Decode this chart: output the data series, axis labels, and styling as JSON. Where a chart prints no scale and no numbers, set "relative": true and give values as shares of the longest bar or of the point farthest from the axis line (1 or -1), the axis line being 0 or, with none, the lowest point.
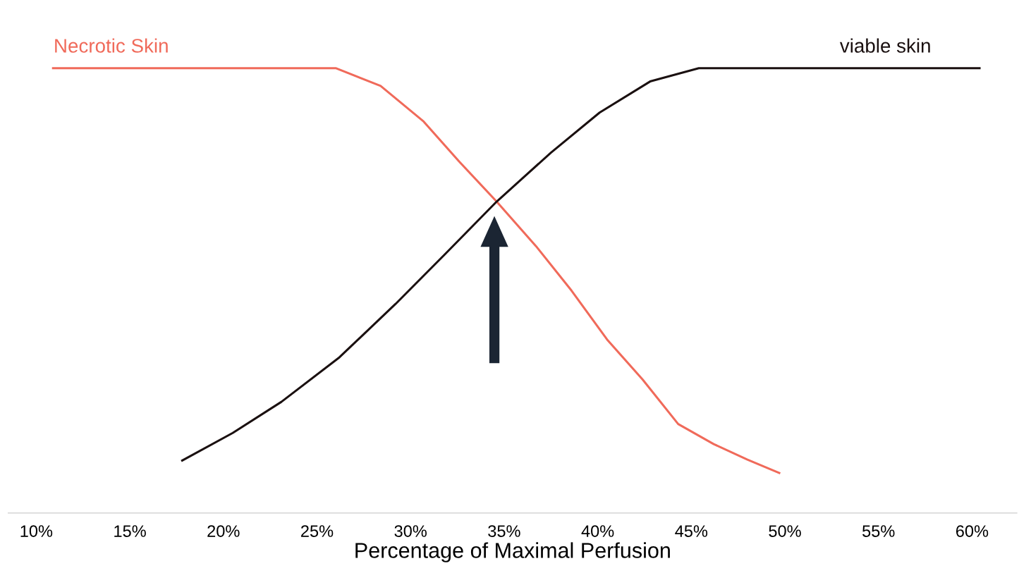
{
  "chart_data": {
    "type": "line",
    "xlabel": "Percentage of Maximal Perfusion",
    "relative": true,
    "xlim": [
      8.5,
      62.4
    ],
    "xticks": [
      {
        "value": 10,
        "label": "10%"
      },
      {
        "value": 15,
        "label": "15%"
      },
      {
        "value": 20,
        "label": "20%"
      },
      {
        "value": 25,
        "label": "25%"
      },
      {
        "value": 30,
        "label": "30%"
      },
      {
        "value": 35,
        "label": "35%"
      },
      {
        "value": 40,
        "label": "40%"
      },
      {
        "value": 45,
        "label": "45%"
      },
      {
        "value": 50,
        "label": "50%"
      },
      {
        "value": 55,
        "label": "55%"
      },
      {
        "value": 60,
        "label": "60%"
      }
    ],
    "legend": false,
    "grid": false,
    "line_style": "solid",
    "marker": "none",
    "series": [
      {
        "name": "Necrotic Skin",
        "color": "#f06a5a",
        "x": [
          10.9,
          26.0,
          28.4,
          30.7,
          32.6,
          34.6,
          36.7,
          38.6,
          40.5,
          42.4,
          44.3,
          46.2,
          48.0,
          49.7
        ],
        "values": [
          1,
          1,
          0.96,
          0.88,
          0.79,
          0.7,
          0.6,
          0.5,
          0.39,
          0.3,
          0.2,
          0.155,
          0.12,
          0.09
        ]
      },
      {
        "name": "viable skin",
        "color": "#1a1010",
        "x": [
          17.8,
          20.5,
          23.1,
          26.2,
          29.2,
          31.8,
          34.6,
          37.5,
          40.1,
          42.8,
          45.4,
          60.4
        ],
        "values": [
          0.118,
          0.18,
          0.25,
          0.35,
          0.47,
          0.58,
          0.7,
          0.81,
          0.9,
          0.97,
          1,
          1
        ]
      }
    ]
  }
}
